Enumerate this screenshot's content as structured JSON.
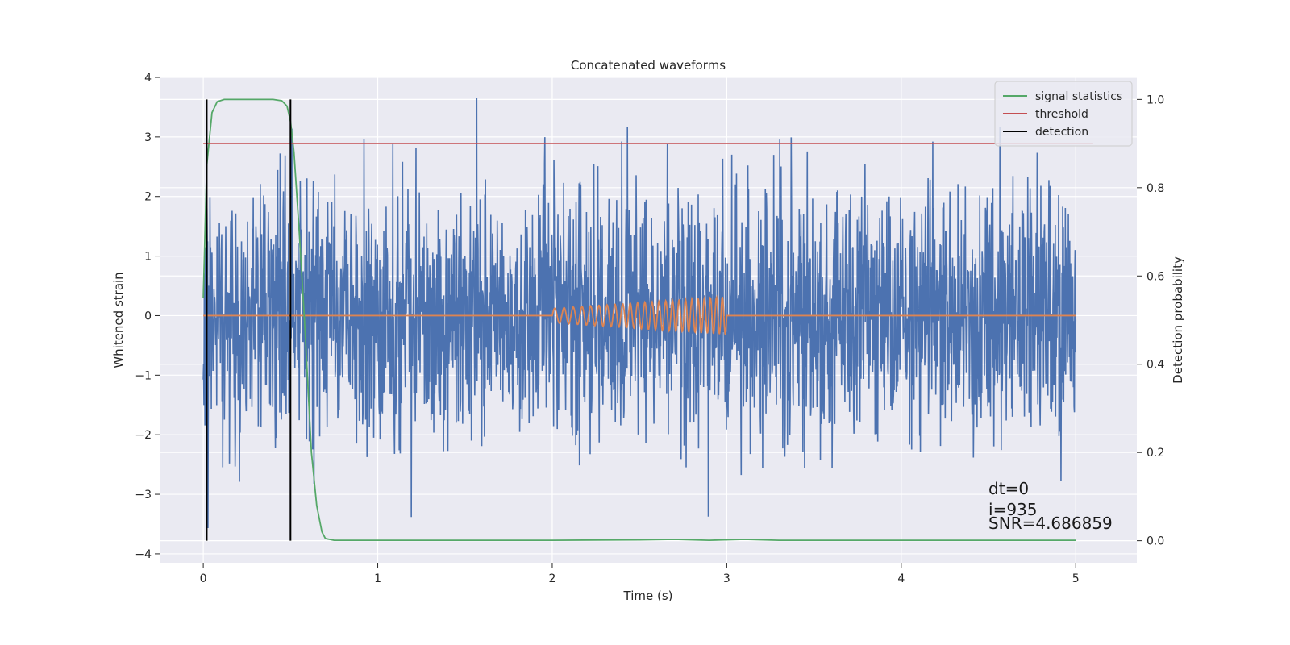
{
  "chart_data": {
    "type": "line",
    "title": "Concatenated waveforms",
    "xlabel": "Time (s)",
    "ylabel": "Whitened strain",
    "ylabel_right": "Detection probability",
    "xlim": [
      -0.25,
      5.35
    ],
    "ylim": [
      -4.15,
      4.0
    ],
    "ylim_right": [
      -0.05,
      1.05
    ],
    "xticks": [
      0,
      1,
      2,
      3,
      4,
      5
    ],
    "yticks": [
      -4,
      -3,
      -2,
      -1,
      0,
      1,
      2,
      3,
      4
    ],
    "yticks_right": [
      0.0,
      0.2,
      0.4,
      0.6,
      0.8,
      1.0
    ],
    "xtick_labels": [
      "0",
      "1",
      "2",
      "3",
      "4",
      "5"
    ],
    "ytick_labels": [
      "−4",
      "−3",
      "−2",
      "−1",
      "0",
      "1",
      "2",
      "3",
      "4"
    ],
    "ytick_right_labels": [
      "0.0",
      "0.2",
      "0.4",
      "0.6",
      "0.8",
      "1.0"
    ],
    "grid": true,
    "legend_position": "top-right",
    "series": [
      {
        "name": "",
        "axis": "left",
        "color": "#4c72b0",
        "description_kind": "noise",
        "x_range": [
          0,
          5
        ],
        "y_envelope": [
          -3.8,
          3.65
        ]
      },
      {
        "name": "",
        "axis": "left",
        "color": "#dd8452",
        "kind": "chirp",
        "x": [
          0,
          2,
          3,
          5
        ],
        "baseline": 0,
        "chirp_start": 2,
        "chirp_end": 3,
        "amplitude_start": 0.12,
        "amplitude_end": 0.32
      },
      {
        "name": "signal statistics",
        "axis": "right",
        "color": "#55a868",
        "x": [
          0,
          0.02,
          0.05,
          0.08,
          0.12,
          0.2,
          0.3,
          0.4,
          0.45,
          0.48,
          0.5,
          0.52,
          0.55,
          0.58,
          0.6,
          0.62,
          0.65,
          0.68,
          0.7,
          0.75,
          1.0,
          2.0,
          2.5,
          2.7,
          2.9,
          3.1,
          3.3,
          4.0,
          5.0
        ],
        "y": [
          0.55,
          0.85,
          0.97,
          0.995,
          1.0,
          1.0,
          1.0,
          1.0,
          0.997,
          0.985,
          0.95,
          0.88,
          0.7,
          0.5,
          0.35,
          0.2,
          0.08,
          0.02,
          0.005,
          0.001,
          0.001,
          0.001,
          0.002,
          0.003,
          0.001,
          0.003,
          0.001,
          0.001,
          0.001
        ]
      },
      {
        "name": "threshold",
        "axis": "right",
        "color": "#c44e52",
        "x": [
          0,
          5.1
        ],
        "y": [
          0.9,
          0.9
        ]
      },
      {
        "name": "detection",
        "axis": "right",
        "color": "#000000",
        "kind": "vlines",
        "x": [
          0.02,
          0.5
        ],
        "y_range": [
          0.0,
          1.0
        ]
      }
    ],
    "annotations": [
      {
        "text": "dt=0",
        "x": 4.5,
        "y": -3.0
      },
      {
        "text": "i=935",
        "x": 4.5,
        "y": -3.35
      },
      {
        "text": "SNR=4.686859",
        "x": 4.5,
        "y": -3.58
      }
    ]
  }
}
